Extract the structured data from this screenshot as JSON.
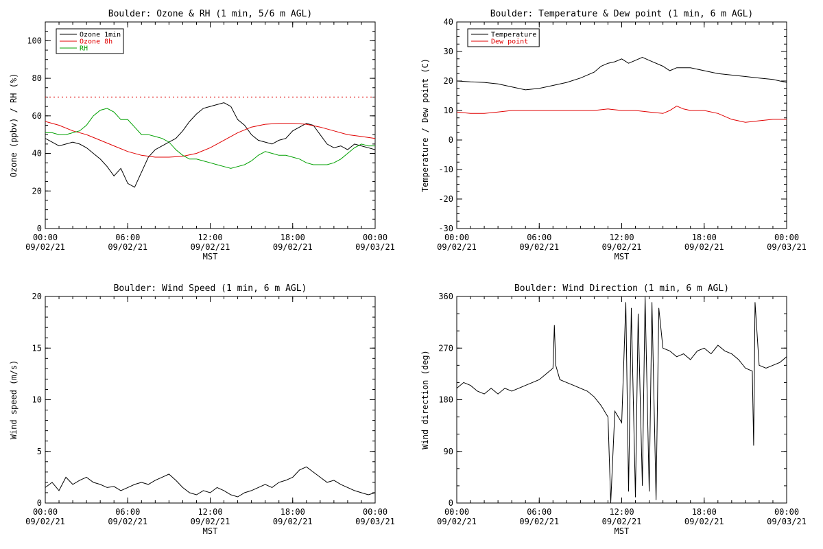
{
  "panels": [
    {
      "title": "Boulder: Ozone & RH (1 min, 5/6 m AGL)",
      "xlabel": "MST",
      "ylabel": "Ozone (ppbv) / RH (%)",
      "x_ticks": [
        {
          "time": "00:00",
          "date": "09/02/21"
        },
        {
          "time": "06:00",
          "date": "09/02/21"
        },
        {
          "time": "12:00",
          "date": "09/02/21"
        },
        {
          "time": "18:00",
          "date": "09/02/21"
        },
        {
          "time": "00:00",
          "date": "09/03/21"
        }
      ],
      "y_ticks": [
        "0",
        "20",
        "40",
        "60",
        "80",
        "100"
      ],
      "legend": [
        {
          "label": "Ozone 1min",
          "color": "#000000"
        },
        {
          "label": "Ozone 8h",
          "color": "#e00000"
        },
        {
          "label": "RH",
          "color": "#00a000"
        }
      ]
    },
    {
      "title": "Boulder: Temperature & Dew point (1 min, 6 m AGL)",
      "xlabel": "MST",
      "ylabel": "Temperature / Dew point (C)",
      "x_ticks": [
        {
          "time": "00:00",
          "date": "09/02/21"
        },
        {
          "time": "06:00",
          "date": "09/02/21"
        },
        {
          "time": "12:00",
          "date": "09/02/21"
        },
        {
          "time": "18:00",
          "date": "09/02/21"
        },
        {
          "time": "00:00",
          "date": "09/03/21"
        }
      ],
      "y_ticks": [
        "-30",
        "-20",
        "-10",
        "0",
        "10",
        "20",
        "30",
        "40"
      ],
      "legend": [
        {
          "label": "Temperature",
          "color": "#000000"
        },
        {
          "label": "Dew point",
          "color": "#e00000"
        }
      ]
    },
    {
      "title": "Boulder: Wind Speed (1 min, 6 m AGL)",
      "xlabel": "MST",
      "ylabel": "Wind speed (m/s)",
      "x_ticks": [
        {
          "time": "00:00",
          "date": "09/02/21"
        },
        {
          "time": "06:00",
          "date": "09/02/21"
        },
        {
          "time": "12:00",
          "date": "09/02/21"
        },
        {
          "time": "18:00",
          "date": "09/02/21"
        },
        {
          "time": "00:00",
          "date": "09/03/21"
        }
      ],
      "y_ticks": [
        "0",
        "5",
        "10",
        "15",
        "20"
      ],
      "legend": []
    },
    {
      "title": "Boulder: Wind Direction (1 min, 6 m AGL)",
      "xlabel": "MST",
      "ylabel": "Wind direction (deg)",
      "x_ticks": [
        {
          "time": "00:00",
          "date": "09/02/21"
        },
        {
          "time": "06:00",
          "date": "09/02/21"
        },
        {
          "time": "12:00",
          "date": "09/02/21"
        },
        {
          "time": "18:00",
          "date": "09/02/21"
        },
        {
          "time": "00:00",
          "date": "09/03/21"
        }
      ],
      "y_ticks": [
        "0",
        "90",
        "180",
        "270",
        "360"
      ],
      "legend": []
    }
  ],
  "chart_data": [
    {
      "type": "line",
      "title": "Boulder: Ozone & RH (1 min, 5/6 m AGL)",
      "xlabel": "MST",
      "ylabel": "Ozone (ppbv) / RH (%)",
      "xlim": [
        0,
        24
      ],
      "ylim": [
        0,
        110
      ],
      "grid": false,
      "legend_position": "top-left",
      "x_unit": "hours MST from 09/02/21 00:00",
      "reference_lines": [
        {
          "y": 70,
          "color": "#e00000",
          "style": "dotted"
        }
      ],
      "series": [
        {
          "name": "Ozone 1min",
          "color": "#000000",
          "x": [
            0,
            0.5,
            1,
            1.5,
            2,
            2.5,
            3,
            3.5,
            4,
            4.5,
            5,
            5.5,
            6,
            6.5,
            7,
            7.5,
            8,
            8.5,
            9,
            9.5,
            10,
            10.5,
            11,
            11.5,
            12,
            12.5,
            13,
            13.5,
            14,
            14.5,
            15,
            15.5,
            16,
            16.5,
            17,
            17.5,
            18,
            18.5,
            19,
            19.5,
            20,
            20.5,
            21,
            21.5,
            22,
            22.5,
            23,
            23.5,
            24
          ],
          "y": [
            48,
            46,
            44,
            45,
            46,
            45,
            43,
            40,
            37,
            33,
            28,
            32,
            24,
            22,
            30,
            38,
            42,
            44,
            46,
            48,
            52,
            57,
            61,
            64,
            65,
            66,
            67,
            65,
            58,
            55,
            50,
            47,
            46,
            45,
            47,
            48,
            52,
            54,
            56,
            55,
            50,
            45,
            43,
            44,
            42,
            45,
            44,
            43,
            42
          ]
        },
        {
          "name": "Ozone 8h",
          "color": "#e00000",
          "x": [
            0,
            1,
            2,
            3,
            4,
            5,
            6,
            7,
            8,
            9,
            10,
            11,
            12,
            13,
            14,
            15,
            16,
            17,
            18,
            19,
            20,
            21,
            22,
            23,
            24
          ],
          "y": [
            57,
            55,
            52,
            50,
            47,
            44,
            41,
            39,
            38,
            38,
            38.5,
            40,
            43,
            47,
            51,
            54,
            55.5,
            56,
            56,
            55.5,
            54,
            52,
            50,
            49,
            48
          ]
        },
        {
          "name": "RH",
          "color": "#00a000",
          "x": [
            0,
            0.5,
            1,
            1.5,
            2,
            2.5,
            3,
            3.5,
            4,
            4.5,
            5,
            5.5,
            6,
            6.5,
            7,
            7.5,
            8,
            8.5,
            9,
            9.5,
            10,
            10.5,
            11,
            11.5,
            12,
            12.5,
            13,
            13.5,
            14,
            14.5,
            15,
            15.5,
            16,
            16.5,
            17,
            17.5,
            18,
            18.5,
            19,
            19.5,
            20,
            20.5,
            21,
            21.5,
            22,
            22.5,
            23,
            23.5,
            24
          ],
          "y": [
            51,
            51,
            50,
            50,
            51,
            52,
            55,
            60,
            63,
            64,
            62,
            58,
            58,
            54,
            50,
            50,
            49,
            48,
            46,
            42,
            39,
            37,
            37,
            36,
            35,
            34,
            33,
            32,
            33,
            34,
            36,
            39,
            41,
            40,
            39,
            39,
            38,
            37,
            35,
            34,
            34,
            34,
            35,
            37,
            40,
            43,
            45,
            44,
            44
          ]
        }
      ]
    },
    {
      "type": "line",
      "title": "Boulder: Temperature & Dew point (1 min, 6 m AGL)",
      "xlabel": "MST",
      "ylabel": "Temperature / Dew point (C)",
      "xlim": [
        0,
        24
      ],
      "ylim": [
        -30,
        40
      ],
      "grid": false,
      "legend_position": "top-left",
      "x_unit": "hours MST from 09/02/21 00:00",
      "series": [
        {
          "name": "Temperature",
          "color": "#000000",
          "x": [
            0,
            1,
            2,
            3,
            4,
            5,
            6,
            7,
            8,
            9,
            10,
            10.5,
            11,
            11.5,
            12,
            12.5,
            13,
            13.5,
            14,
            15,
            15.5,
            16,
            17,
            18,
            19,
            20,
            21,
            22,
            23,
            24
          ],
          "y": [
            20,
            19.7,
            19.5,
            19,
            18,
            17,
            17.5,
            18.5,
            19.5,
            21,
            23,
            25,
            26,
            26.5,
            27.5,
            26,
            27,
            28,
            27,
            25,
            23.5,
            24.5,
            24.5,
            23.5,
            22.5,
            22,
            21.5,
            21,
            20.5,
            19.5
          ]
        },
        {
          "name": "Dew point",
          "color": "#e00000",
          "x": [
            0,
            1,
            2,
            3,
            4,
            5,
            6,
            7,
            8,
            9,
            10,
            11,
            12,
            13,
            14,
            15,
            15.5,
            16,
            16.5,
            17,
            18,
            19,
            20,
            21,
            22,
            23,
            24
          ],
          "y": [
            9.5,
            9,
            9,
            9.5,
            10,
            10,
            10,
            10,
            10,
            10,
            10,
            10.5,
            10,
            10,
            9.5,
            9,
            10,
            11.5,
            10.5,
            10,
            10,
            9,
            7,
            6,
            6.5,
            7,
            7
          ]
        }
      ]
    },
    {
      "type": "line",
      "title": "Boulder: Wind Speed (1 min, 6 m AGL)",
      "xlabel": "MST",
      "ylabel": "Wind speed (m/s)",
      "xlim": [
        0,
        24
      ],
      "ylim": [
        0,
        20
      ],
      "grid": false,
      "x_unit": "hours MST from 09/02/21 00:00",
      "series": [
        {
          "name": "",
          "color": "#000000",
          "x": [
            0,
            0.5,
            1,
            1.5,
            2,
            2.5,
            3,
            3.5,
            4,
            4.5,
            5,
            5.5,
            6,
            6.5,
            7,
            7.5,
            8,
            8.5,
            9,
            9.5,
            10,
            10.5,
            11,
            11.5,
            12,
            12.5,
            13,
            13.5,
            14,
            14.5,
            15,
            15.5,
            16,
            16.5,
            17,
            17.5,
            18,
            18.5,
            19,
            19.5,
            20,
            20.5,
            21,
            21.5,
            22,
            22.5,
            23,
            23.5,
            24
          ],
          "y": [
            1.5,
            2,
            1.2,
            2.5,
            1.8,
            2.2,
            2.5,
            2,
            1.8,
            1.5,
            1.6,
            1.2,
            1.5,
            1.8,
            2,
            1.8,
            2.2,
            2.5,
            2.8,
            2.2,
            1.5,
            1,
            0.8,
            1.2,
            1,
            1.5,
            1.2,
            0.8,
            0.6,
            1,
            1.2,
            1.5,
            1.8,
            1.5,
            2,
            2.2,
            2.5,
            3.2,
            3.5,
            3,
            2.5,
            2,
            2.2,
            1.8,
            1.5,
            1.2,
            1,
            0.8,
            1
          ]
        }
      ]
    },
    {
      "type": "line",
      "title": "Boulder: Wind Direction (1 min, 6 m AGL)",
      "xlabel": "MST",
      "ylabel": "Wind direction (deg)",
      "xlim": [
        0,
        24
      ],
      "ylim": [
        0,
        360
      ],
      "grid": false,
      "x_unit": "hours MST from 09/02/21 00:00",
      "series": [
        {
          "name": "",
          "color": "#000000",
          "x": [
            0,
            0.5,
            1,
            1.5,
            2,
            2.5,
            3,
            3.5,
            4,
            4.5,
            5,
            5.5,
            6,
            6.5,
            7,
            7.1,
            7.2,
            7.5,
            8,
            8.5,
            9,
            9.5,
            10,
            10.5,
            11,
            11.2,
            11.5,
            12,
            12.3,
            12.5,
            12.7,
            13,
            13.2,
            13.5,
            13.7,
            14,
            14.2,
            14.5,
            14.7,
            15,
            15.5,
            16,
            16.5,
            17,
            17.5,
            18,
            18.5,
            19,
            19.5,
            20,
            20.5,
            21,
            21.5,
            21.6,
            21.7,
            22,
            22.5,
            23,
            23.5,
            24
          ],
          "y": [
            200,
            210,
            205,
            195,
            190,
            200,
            190,
            200,
            195,
            200,
            205,
            210,
            215,
            225,
            235,
            310,
            240,
            215,
            210,
            205,
            200,
            195,
            185,
            170,
            150,
            0,
            160,
            140,
            350,
            20,
            340,
            10,
            330,
            30,
            360,
            20,
            350,
            5,
            340,
            270,
            265,
            255,
            260,
            250,
            265,
            270,
            260,
            275,
            265,
            260,
            250,
            235,
            230,
            100,
            350,
            240,
            235,
            240,
            245,
            255
          ]
        }
      ]
    }
  ]
}
